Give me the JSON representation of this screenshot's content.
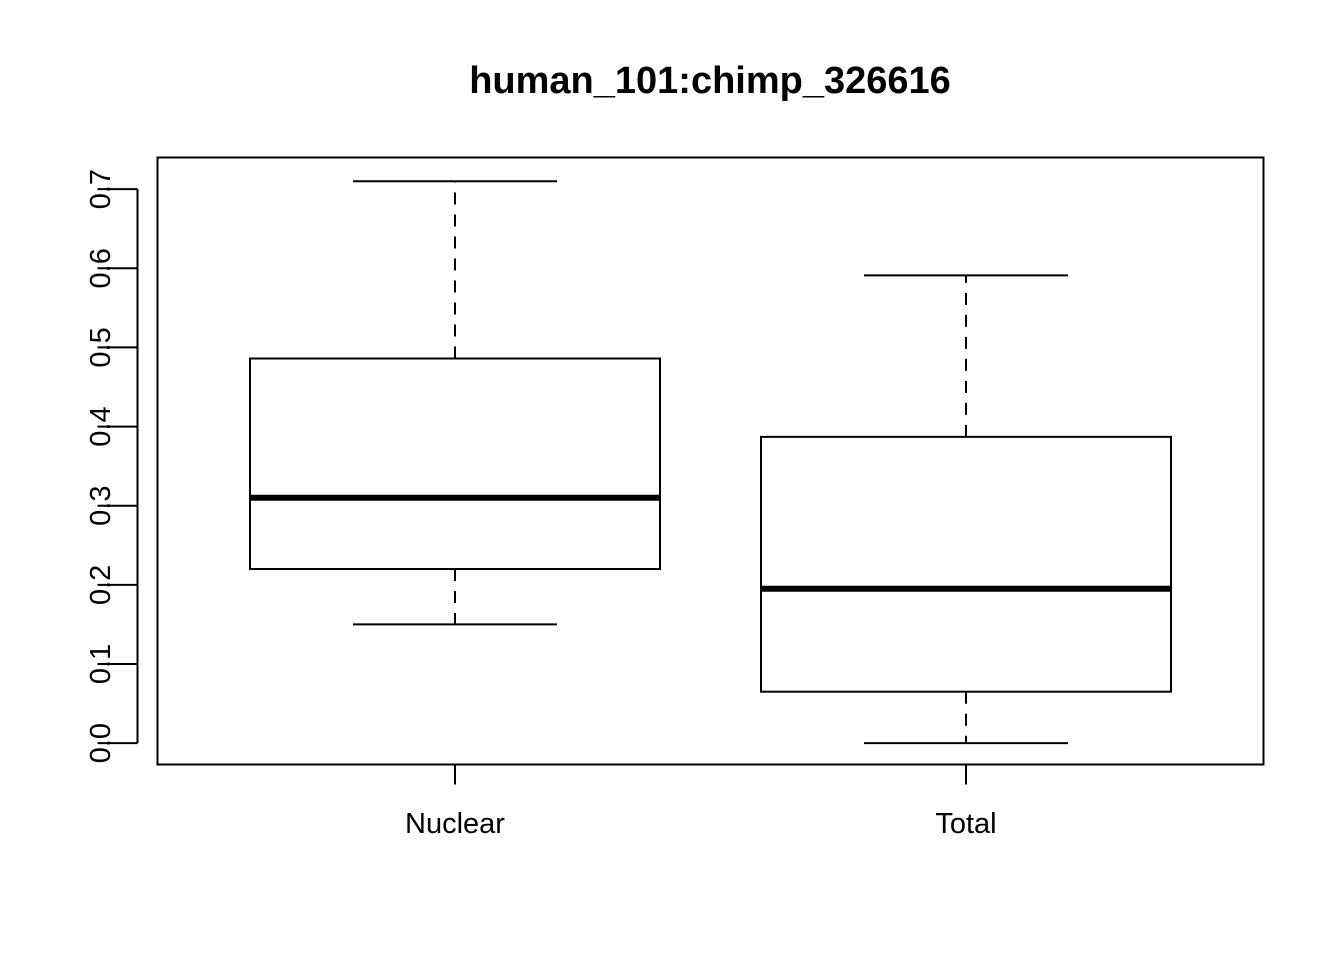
{
  "chart_data": {
    "type": "box",
    "title": "human_101:chimp_326616",
    "xlabel": "",
    "ylabel": "",
    "ylim": [
      -0.027,
      0.74
    ],
    "yticks": [
      0.0,
      0.1,
      0.2,
      0.3,
      0.4,
      0.5,
      0.6,
      0.7
    ],
    "ytick_labels": [
      "0.0",
      "0.1",
      "0.2",
      "0.3",
      "0.4",
      "0.5",
      "0.6",
      "0.7"
    ],
    "grid": false,
    "legend": "none",
    "categories": [
      "Nuclear",
      "Total"
    ],
    "boxes": [
      {
        "category": "Nuclear",
        "whisker_low": 0.15,
        "q1": 0.22,
        "median": 0.31,
        "q3": 0.486,
        "whisker_high": 0.71
      },
      {
        "category": "Total",
        "whisker_low": 0.0,
        "q1": 0.065,
        "median": 0.195,
        "q3": 0.387,
        "whisker_high": 0.591
      }
    ],
    "colors": {
      "line": "#000000",
      "box_fill": "#ffffff",
      "background": "#ffffff"
    }
  }
}
